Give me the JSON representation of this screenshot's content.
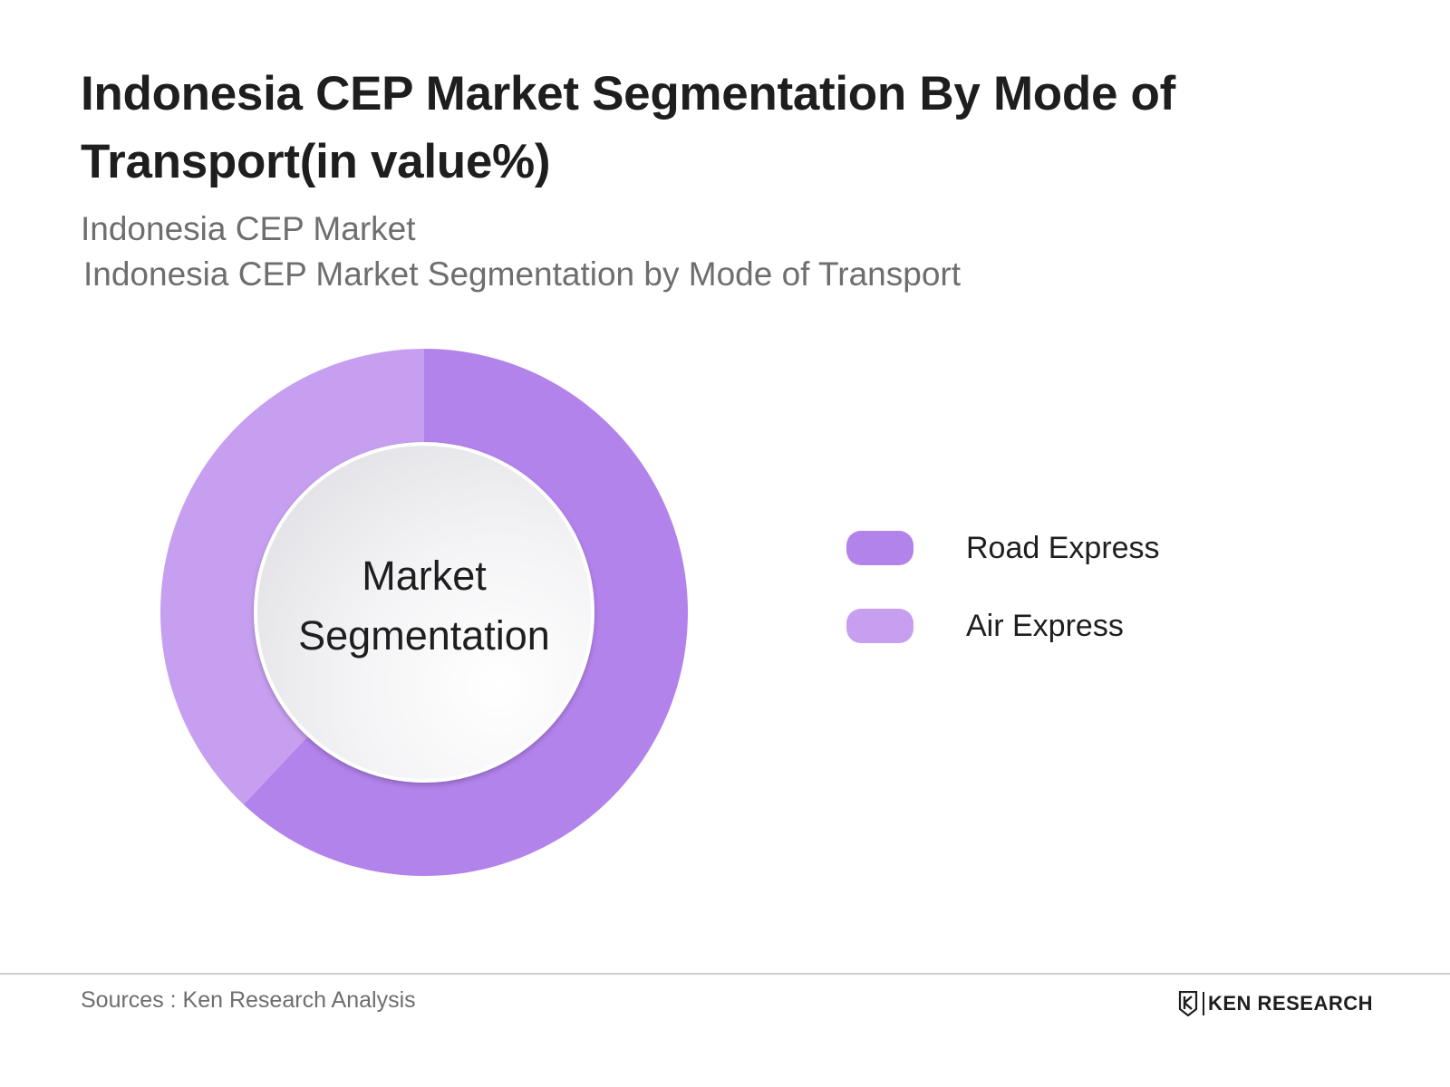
{
  "title": "Indonesia CEP Market Segmentation By Mode of Transport(in value%)",
  "subtitle": "Indonesia CEP Market",
  "subtitle2": "Indonesia CEP Market Segmentation by Mode of Transport",
  "center_label": {
    "line1": "Market",
    "line2": "Segmentation"
  },
  "colors": {
    "road": "#b383ec",
    "air": "#c79ff0"
  },
  "chart_data": {
    "type": "pie",
    "variant": "donut",
    "title": "Indonesia CEP Market Segmentation By Mode of Transport(in value%)",
    "categories": [
      "Road Express",
      "Air Express"
    ],
    "values": [
      62,
      38
    ],
    "unit": "%",
    "legend": "right"
  },
  "legend": {
    "items": [
      {
        "label": "Road Express"
      },
      {
        "label": "Air Express"
      }
    ]
  },
  "footer": {
    "source": "Sources : Ken Research Analysis",
    "logo_text": "KEN RESEARCH"
  }
}
